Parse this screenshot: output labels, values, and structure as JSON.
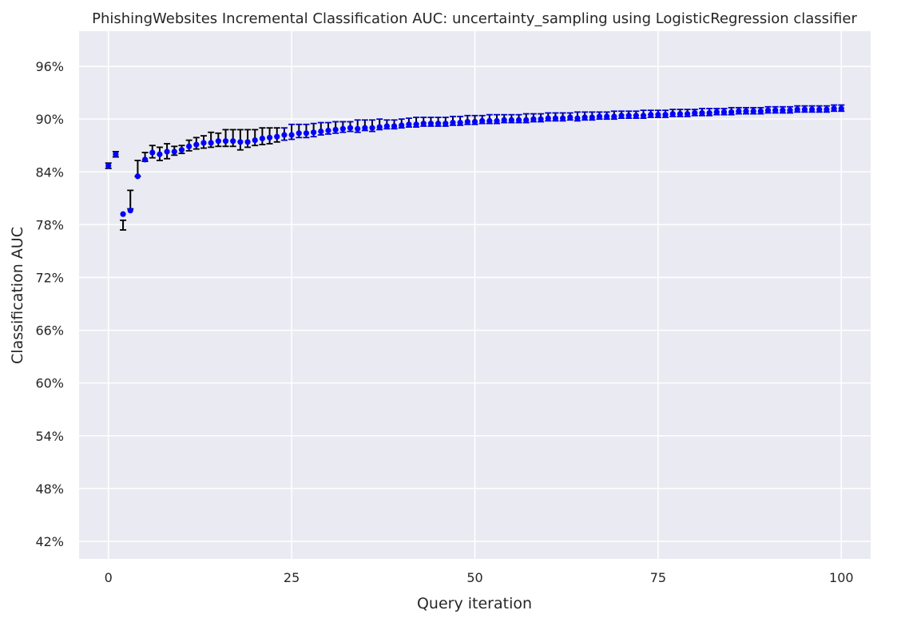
{
  "chart_data": {
    "type": "scatter",
    "title": "PhishingWebsites Incremental Classification AUC: uncertainty_sampling using LogisticRegression classifier",
    "xlabel": "Query iteration",
    "ylabel": "Classification AUC",
    "xlim": [
      -4,
      104
    ],
    "ylim": [
      40,
      100
    ],
    "xticks": [
      0,
      25,
      50,
      75,
      100
    ],
    "yticks": [
      42,
      48,
      54,
      60,
      66,
      72,
      78,
      84,
      90,
      96
    ],
    "ytick_labels": [
      "42%",
      "48%",
      "54%",
      "60%",
      "66%",
      "72%",
      "78%",
      "84%",
      "90%",
      "96%"
    ],
    "grid": true,
    "legend": "none",
    "colors": {
      "background": "#eaeaf2",
      "grid": "#ffffff",
      "points": "#0000ff",
      "errorbars": "#000000",
      "errorbars_late": "#0000cd"
    },
    "series": [
      {
        "x": [
          0,
          1,
          2,
          3,
          4,
          5,
          6,
          7,
          8,
          9,
          10,
          11,
          12,
          13,
          14,
          15,
          16,
          17,
          18,
          19,
          20,
          21,
          22,
          23,
          24,
          25,
          26,
          27,
          28,
          29,
          30,
          31,
          32,
          33,
          34,
          35,
          36,
          37,
          38,
          39,
          40,
          41,
          42,
          43,
          44,
          45,
          46,
          47,
          48,
          49,
          50,
          51,
          52,
          53,
          54,
          55,
          56,
          57,
          58,
          59,
          60,
          61,
          62,
          63,
          64,
          65,
          66,
          67,
          68,
          69,
          70,
          71,
          72,
          73,
          74,
          75,
          76,
          77,
          78,
          79,
          80,
          81,
          82,
          83,
          84,
          85,
          86,
          87,
          88,
          89,
          90,
          91,
          92,
          93,
          94,
          95,
          96,
          97,
          98,
          99,
          100
        ],
        "y": [
          84.7,
          86.0,
          79.2,
          79.6,
          83.5,
          85.4,
          86.2,
          86.0,
          86.3,
          86.3,
          86.5,
          86.9,
          87.1,
          87.3,
          87.3,
          87.5,
          87.5,
          87.5,
          87.4,
          87.4,
          87.6,
          87.8,
          87.9,
          88.0,
          88.2,
          88.2,
          88.4,
          88.4,
          88.5,
          88.6,
          88.7,
          88.8,
          88.9,
          89.0,
          88.9,
          89.0,
          89.0,
          89.1,
          89.2,
          89.2,
          89.3,
          89.4,
          89.4,
          89.5,
          89.5,
          89.5,
          89.5,
          89.6,
          89.6,
          89.7,
          89.7,
          89.8,
          89.8,
          89.8,
          89.9,
          89.9,
          89.9,
          89.9,
          90.0,
          90.0,
          90.1,
          90.1,
          90.1,
          90.2,
          90.1,
          90.2,
          90.2,
          90.3,
          90.3,
          90.3,
          90.4,
          90.4,
          90.4,
          90.4,
          90.5,
          90.5,
          90.5,
          90.6,
          90.6,
          90.6,
          90.7,
          90.7,
          90.7,
          90.8,
          90.8,
          90.8,
          90.9,
          90.9,
          90.9,
          90.9,
          91.0,
          91.0,
          91.0,
          91.0,
          91.1,
          91.1,
          91.1,
          91.1,
          91.1,
          91.2,
          91.2
        ],
        "err_low": [
          84.4,
          85.7,
          77.4,
          79.8,
          83.5,
          85.2,
          85.6,
          85.3,
          85.5,
          85.9,
          86.1,
          86.4,
          86.6,
          86.7,
          86.8,
          86.9,
          86.9,
          86.9,
          86.5,
          86.8,
          87.0,
          87.1,
          87.2,
          87.4,
          87.6,
          87.7,
          87.9,
          87.9,
          88.0,
          88.2,
          88.3,
          88.4,
          88.5,
          88.6,
          88.5,
          88.7,
          88.6,
          88.8,
          88.9,
          88.9,
          89.0,
          89.1,
          89.1,
          89.2,
          89.2,
          89.2,
          89.2,
          89.3,
          89.3,
          89.4,
          89.4,
          89.5,
          89.5,
          89.5,
          89.6,
          89.6,
          89.6,
          89.6,
          89.7,
          89.7,
          89.8,
          89.8,
          89.8,
          89.9,
          89.8,
          89.9,
          89.9,
          90.0,
          90.0,
          90.0,
          90.1,
          90.1,
          90.1,
          90.1,
          90.2,
          90.2,
          90.2,
          90.3,
          90.3,
          90.3,
          90.4,
          90.4,
          90.4,
          90.5,
          90.5,
          90.5,
          90.6,
          90.6,
          90.6,
          90.6,
          90.7,
          90.7,
          90.7,
          90.7,
          90.8,
          90.8,
          90.8,
          90.8,
          90.8,
          90.9,
          90.9
        ],
        "err_high": [
          85.0,
          86.3,
          78.5,
          81.9,
          85.3,
          86.2,
          87.0,
          86.8,
          87.2,
          86.9,
          87.0,
          87.6,
          87.9,
          88.1,
          88.5,
          88.4,
          88.8,
          88.8,
          88.8,
          88.8,
          88.8,
          89.0,
          89.0,
          89.0,
          89.0,
          89.4,
          89.4,
          89.4,
          89.5,
          89.6,
          89.6,
          89.7,
          89.7,
          89.7,
          89.9,
          89.9,
          89.9,
          90.0,
          89.9,
          89.9,
          90.0,
          90.1,
          90.2,
          90.2,
          90.2,
          90.2,
          90.2,
          90.3,
          90.3,
          90.4,
          90.4,
          90.4,
          90.5,
          90.5,
          90.5,
          90.5,
          90.5,
          90.6,
          90.6,
          90.6,
          90.7,
          90.7,
          90.7,
          90.7,
          90.8,
          90.8,
          90.8,
          90.8,
          90.8,
          90.9,
          90.9,
          90.9,
          90.9,
          91.0,
          91.0,
          91.0,
          91.0,
          91.1,
          91.1,
          91.1,
          91.1,
          91.2,
          91.2,
          91.2,
          91.2,
          91.3,
          91.3,
          91.3,
          91.3,
          91.3,
          91.4,
          91.4,
          91.4,
          91.4,
          91.5,
          91.5,
          91.5,
          91.5,
          91.5,
          91.6,
          91.6
        ]
      }
    ]
  }
}
